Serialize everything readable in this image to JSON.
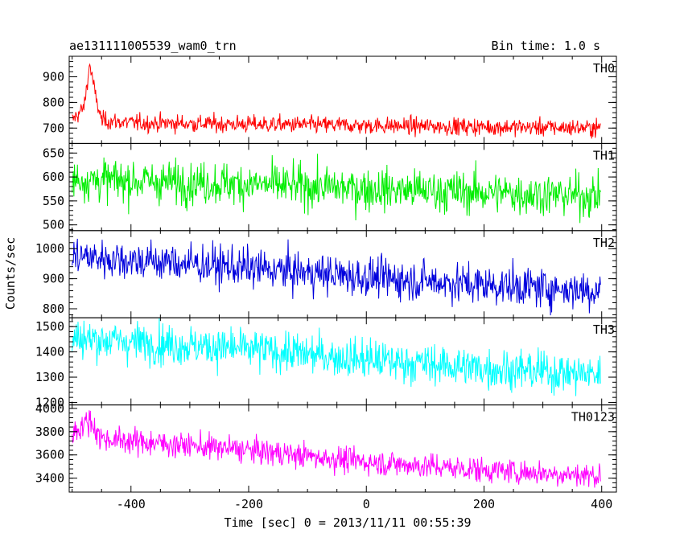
{
  "header": {
    "title": "ae131111005539_wam0_trn",
    "bin_time": "Bin time: 1.0 s"
  },
  "chart_data": {
    "type": "line",
    "xlabel": "Time [sec] 0 = 2013/11/11 00:55:39",
    "ylabel": "Counts/sec",
    "xlim": [
      -505,
      425
    ],
    "x_ticks": [
      -400,
      -200,
      0,
      200,
      400
    ],
    "x_range": [
      -500,
      398
    ],
    "bin": 1.0,
    "panels": [
      {
        "name": "TH0",
        "color": "#ff0000",
        "ylim": [
          640,
          980
        ],
        "y_ticks": [
          700,
          800,
          900
        ],
        "level_start": 720,
        "level_end": 700,
        "noise": 17,
        "peak": {
          "time": -470,
          "height": 230,
          "width": 8
        },
        "trend_points": [
          [
            -500,
            730
          ],
          [
            -480,
            780
          ],
          [
            -470,
            950
          ],
          [
            -460,
            820
          ],
          [
            -450,
            730
          ],
          [
            -400,
            720
          ],
          [
            0,
            710
          ],
          [
            398,
            700
          ]
        ]
      },
      {
        "name": "TH1",
        "color": "#00ee00",
        "ylim": [
          488,
          670
        ],
        "y_ticks": [
          500,
          550,
          600,
          650
        ],
        "level_start": 595,
        "level_end": 560,
        "noise": 22,
        "trend_points": [
          [
            -500,
            595
          ],
          [
            -200,
            585
          ],
          [
            0,
            575
          ],
          [
            398,
            560
          ]
        ]
      },
      {
        "name": "TH2",
        "color": "#0000dd",
        "ylim": [
          770,
          1060
        ],
        "y_ticks": [
          800,
          900,
          1000
        ],
        "level_start": 975,
        "level_end": 860,
        "noise": 33,
        "trend_points": [
          [
            -500,
            975
          ],
          [
            -300,
            950
          ],
          [
            0,
            905
          ],
          [
            200,
            880
          ],
          [
            398,
            860
          ]
        ]
      },
      {
        "name": "TH3",
        "color": "#00ffff",
        "ylim": [
          1190,
          1535
        ],
        "y_ticks": [
          1200,
          1300,
          1400,
          1500
        ],
        "level_start": 1455,
        "level_end": 1310,
        "noise": 40,
        "trend_points": [
          [
            -500,
            1455
          ],
          [
            -200,
            1410
          ],
          [
            0,
            1370
          ],
          [
            200,
            1335
          ],
          [
            398,
            1310
          ]
        ]
      },
      {
        "name": "TH0123",
        "color": "#ff00ff",
        "ylim": [
          3280,
          4030
        ],
        "y_ticks": [
          3400,
          3600,
          3800,
          4000
        ],
        "level_start": 3740,
        "level_end": 3420,
        "noise": 55,
        "peak": {
          "time": -470,
          "height": 220,
          "width": 10
        },
        "trend_points": [
          [
            -500,
            3790
          ],
          [
            -470,
            3900
          ],
          [
            -450,
            3740
          ],
          [
            -200,
            3640
          ],
          [
            0,
            3540
          ],
          [
            200,
            3470
          ],
          [
            398,
            3420
          ]
        ]
      }
    ]
  }
}
